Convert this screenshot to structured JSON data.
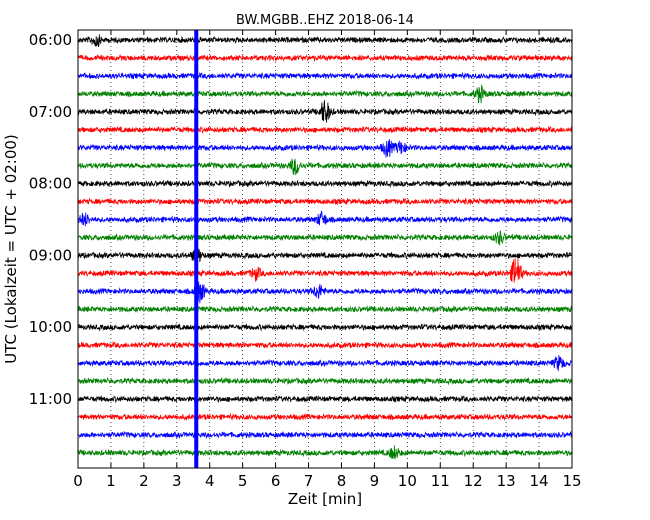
{
  "chart_data": {
    "type": "line",
    "title": "BW.MGBB..EHZ 2018-06-14",
    "xlabel": "Zeit  [min]",
    "ylabel": "UTC (Lokalzeit = UTC + 02:00)",
    "xlim": [
      0,
      15
    ],
    "x_ticks": [
      "0",
      "1",
      "2",
      "3",
      "4",
      "5",
      "6",
      "7",
      "8",
      "9",
      "10",
      "11",
      "12",
      "13",
      "14",
      "15"
    ],
    "y_ticks": [
      "06:00",
      "07:00",
      "08:00",
      "09:00",
      "10:00",
      "11:00"
    ],
    "grid": "vertical dotted",
    "trace_interval_min": 15,
    "traces": [
      "06:00",
      "06:15",
      "06:30",
      "06:45",
      "07:00",
      "07:15",
      "07:30",
      "07:45",
      "08:00",
      "08:15",
      "08:30",
      "08:45",
      "09:00",
      "09:15",
      "09:30",
      "09:45",
      "10:00",
      "10:15",
      "10:30",
      "10:45",
      "11:00",
      "11:15",
      "11:30",
      "11:45"
    ],
    "trace_colors": [
      "#000000",
      "#ff0000",
      "#0000ff",
      "#008000"
    ],
    "marker": {
      "x_min": 3.5,
      "color": "#0000ff"
    },
    "events": [
      {
        "trace": 0,
        "x_min": 0.55,
        "amp": 0.35
      },
      {
        "trace": 4,
        "x_min": 7.5,
        "amp": 0.7
      },
      {
        "trace": 6,
        "x_min": 9.4,
        "amp": 0.5
      },
      {
        "trace": 6,
        "x_min": 9.8,
        "amp": 0.35
      },
      {
        "trace": 7,
        "x_min": 6.6,
        "amp": 0.5
      },
      {
        "trace": 3,
        "x_min": 12.2,
        "amp": 0.45
      },
      {
        "trace": 10,
        "x_min": 7.4,
        "amp": 0.4
      },
      {
        "trace": 10,
        "x_min": 0.2,
        "amp": 0.35
      },
      {
        "trace": 11,
        "x_min": 12.8,
        "amp": 0.35
      },
      {
        "trace": 12,
        "x_min": 3.6,
        "amp": 0.45
      },
      {
        "trace": 13,
        "x_min": 5.4,
        "amp": 0.35
      },
      {
        "trace": 13,
        "x_min": 13.3,
        "amp": 1.0
      },
      {
        "trace": 14,
        "x_min": 3.7,
        "amp": 0.6
      },
      {
        "trace": 14,
        "x_min": 7.3,
        "amp": 0.4
      },
      {
        "trace": 18,
        "x_min": 14.6,
        "amp": 0.4
      },
      {
        "trace": 23,
        "x_min": 9.6,
        "amp": 0.35
      }
    ]
  }
}
